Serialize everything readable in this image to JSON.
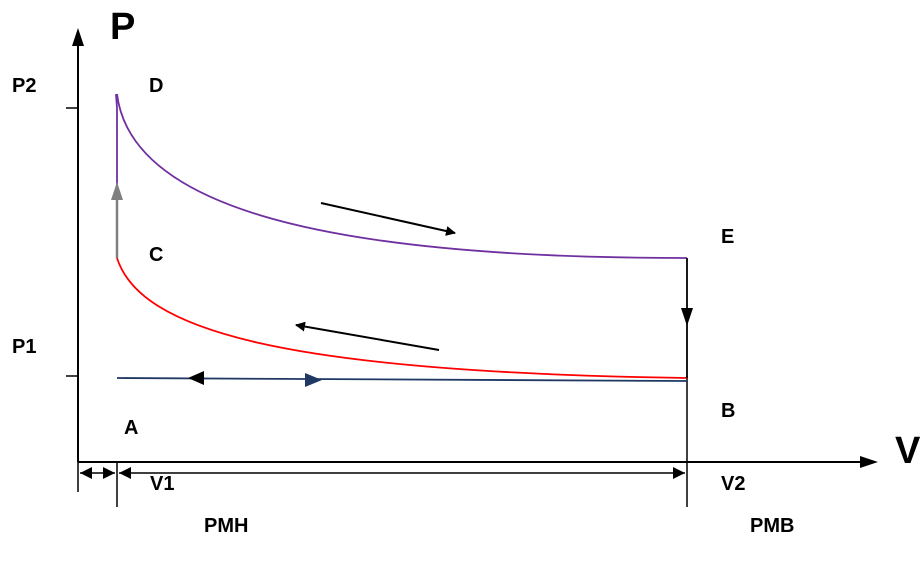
{
  "axes": {
    "y_label": "P",
    "x_label": "V",
    "y_ticks": {
      "high": "P2",
      "low": "P1"
    },
    "x_ticks": {
      "left": "V1",
      "right": "V2"
    }
  },
  "points": {
    "a": "A",
    "b": "B",
    "c": "C",
    "d": "D",
    "e": "E"
  },
  "positions": {
    "left": "PMH",
    "right": "PMB"
  },
  "colors": {
    "expansion_curve": "#7030a0",
    "compression_curve": "#ff0000",
    "intake_exhaust_line": "#1f3864",
    "heat_addition_arrow": "#808080",
    "axes": "#000000"
  },
  "icons": {
    "expansion_direction": "arrow-right-icon",
    "compression_direction": "arrow-left-icon",
    "heat_addition": "arrow-up-icon",
    "heat_rejection": "arrow-down-icon"
  }
}
